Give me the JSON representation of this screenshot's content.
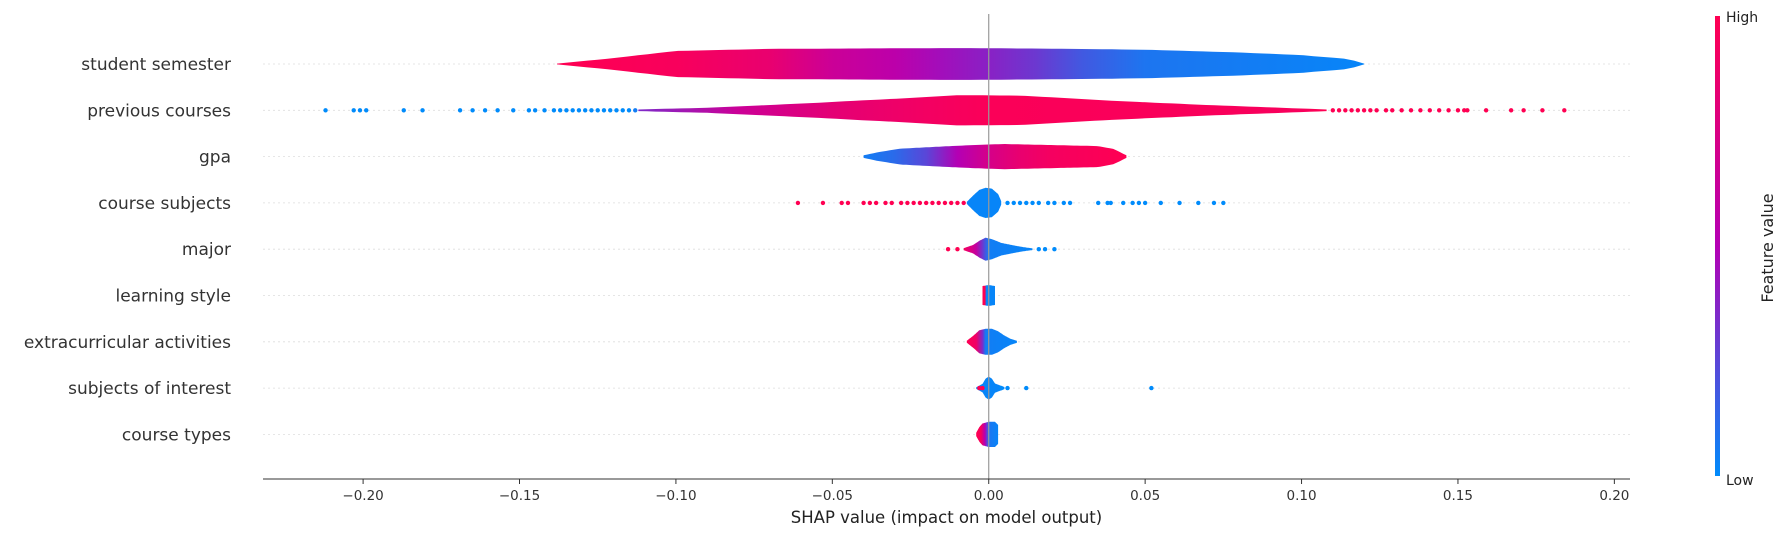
{
  "chart_data": {
    "type": "violin",
    "title": "",
    "xlabel": "SHAP value (impact on model output)",
    "xlim": [
      -0.232,
      0.205
    ],
    "xticks": [
      -0.2,
      -0.15,
      -0.1,
      -0.05,
      0.0,
      0.05,
      0.1,
      0.15,
      0.2
    ],
    "xtick_labels": [
      "−0.20",
      "−0.15",
      "−0.10",
      "−0.05",
      "0.00",
      "0.05",
      "0.10",
      "0.15",
      "0.20"
    ],
    "colorbar": {
      "label": "Feature value",
      "high_label": "High",
      "low_label": "Low",
      "low_color": "#008bfb",
      "high_color": "#ff0052"
    },
    "features": [
      {
        "name": "student semester",
        "range": [
          -0.138,
          0.12
        ],
        "width": [
          [
            -0.138,
            0.02
          ],
          [
            -0.12,
            0.28
          ],
          [
            -0.1,
            0.62
          ],
          [
            -0.07,
            0.72
          ],
          [
            -0.04,
            0.74
          ],
          [
            -0.01,
            0.76
          ],
          [
            0.02,
            0.73
          ],
          [
            0.05,
            0.68
          ],
          [
            0.08,
            0.55
          ],
          [
            0.1,
            0.42
          ],
          [
            0.115,
            0.24
          ],
          [
            0.12,
            0.02
          ]
        ],
        "color": [
          [
            -0.138,
            1.0
          ],
          [
            -0.1,
            0.95
          ],
          [
            -0.07,
            0.85
          ],
          [
            -0.05,
            0.65
          ],
          [
            -0.03,
            0.55
          ],
          [
            -0.015,
            0.45
          ],
          [
            0.0,
            0.38
          ],
          [
            0.015,
            0.3
          ],
          [
            0.03,
            0.18
          ],
          [
            0.05,
            0.08
          ],
          [
            0.12,
            0.02
          ]
        ]
      },
      {
        "name": "previous courses",
        "range": [
          -0.112,
          0.108
        ],
        "width": [
          [
            -0.112,
            0.04
          ],
          [
            -0.09,
            0.12
          ],
          [
            -0.06,
            0.32
          ],
          [
            -0.03,
            0.55
          ],
          [
            -0.01,
            0.72
          ],
          [
            0.01,
            0.7
          ],
          [
            0.04,
            0.45
          ],
          [
            0.07,
            0.25
          ],
          [
            0.09,
            0.14
          ],
          [
            0.108,
            0.04
          ]
        ],
        "color": [
          [
            -0.112,
            0.35
          ],
          [
            -0.08,
            0.65
          ],
          [
            -0.05,
            0.82
          ],
          [
            -0.02,
            0.92
          ],
          [
            0.0,
            0.97
          ],
          [
            0.1,
            0.95
          ],
          [
            0.108,
            1.0
          ]
        ],
        "dots": [
          [
            -0.212,
            0.0
          ],
          [
            -0.203,
            0.0
          ],
          [
            -0.201,
            0.0
          ],
          [
            -0.199,
            0.0
          ],
          [
            -0.187,
            0.0
          ],
          [
            -0.181,
            0.0
          ],
          [
            -0.169,
            0.0
          ],
          [
            -0.165,
            0.0
          ],
          [
            -0.161,
            0.0
          ],
          [
            -0.157,
            0.0
          ],
          [
            -0.152,
            0.0
          ],
          [
            -0.147,
            0.0
          ],
          [
            -0.145,
            0.0
          ],
          [
            -0.142,
            0.0
          ],
          [
            -0.139,
            0.0
          ],
          [
            -0.137,
            0.0
          ],
          [
            -0.135,
            0.0
          ],
          [
            -0.133,
            0.0
          ],
          [
            -0.131,
            0.0
          ],
          [
            -0.129,
            0.0
          ],
          [
            -0.127,
            0.0
          ],
          [
            -0.125,
            0.0
          ],
          [
            -0.123,
            0.0
          ],
          [
            -0.121,
            0.0
          ],
          [
            -0.119,
            0.0
          ],
          [
            -0.117,
            0.0
          ],
          [
            -0.115,
            0.0
          ],
          [
            -0.113,
            0.05
          ],
          [
            0.11,
            1.0
          ],
          [
            0.112,
            1.0
          ],
          [
            0.114,
            1.0
          ],
          [
            0.116,
            1.0
          ],
          [
            0.118,
            1.0
          ],
          [
            0.12,
            1.0
          ],
          [
            0.122,
            1.0
          ],
          [
            0.124,
            1.0
          ],
          [
            0.127,
            1.0
          ],
          [
            0.129,
            1.0
          ],
          [
            0.132,
            1.0
          ],
          [
            0.135,
            1.0
          ],
          [
            0.138,
            1.0
          ],
          [
            0.141,
            1.0
          ],
          [
            0.144,
            1.0
          ],
          [
            0.147,
            1.0
          ],
          [
            0.15,
            1.0
          ],
          [
            0.152,
            1.0
          ],
          [
            0.153,
            1.0
          ],
          [
            0.159,
            1.0
          ],
          [
            0.167,
            1.0
          ],
          [
            0.171,
            1.0
          ],
          [
            0.177,
            1.0
          ],
          [
            0.184,
            1.0
          ]
        ]
      },
      {
        "name": "gpa",
        "range": [
          -0.04,
          0.044
        ],
        "width": [
          [
            -0.04,
            0.06
          ],
          [
            -0.035,
            0.22
          ],
          [
            -0.028,
            0.38
          ],
          [
            -0.015,
            0.48
          ],
          [
            -0.005,
            0.55
          ],
          [
            0.005,
            0.6
          ],
          [
            0.02,
            0.55
          ],
          [
            0.035,
            0.5
          ],
          [
            0.04,
            0.36
          ],
          [
            0.044,
            0.06
          ]
        ],
        "color": [
          [
            -0.04,
            0.05
          ],
          [
            -0.03,
            0.12
          ],
          [
            -0.02,
            0.25
          ],
          [
            -0.01,
            0.5
          ],
          [
            0.0,
            0.72
          ],
          [
            0.01,
            0.85
          ],
          [
            0.02,
            0.93
          ],
          [
            0.044,
            1.0
          ]
        ]
      },
      {
        "name": "course subjects",
        "range": [
          -0.007,
          0.004
        ],
        "width": [
          [
            -0.007,
            0.05
          ],
          [
            -0.005,
            0.35
          ],
          [
            -0.003,
            0.62
          ],
          [
            -0.001,
            0.72
          ],
          [
            0.001,
            0.68
          ],
          [
            0.003,
            0.42
          ],
          [
            0.004,
            0.08
          ]
        ],
        "color": [
          [
            -0.007,
            0.02
          ],
          [
            0.004,
            0.02
          ]
        ],
        "dots": [
          [
            -0.061,
            1.0
          ],
          [
            -0.053,
            1.0
          ],
          [
            -0.047,
            1.0
          ],
          [
            -0.045,
            1.0
          ],
          [
            -0.04,
            1.0
          ],
          [
            -0.038,
            1.0
          ],
          [
            -0.036,
            1.0
          ],
          [
            -0.033,
            1.0
          ],
          [
            -0.031,
            1.0
          ],
          [
            -0.028,
            1.0
          ],
          [
            -0.026,
            1.0
          ],
          [
            -0.024,
            1.0
          ],
          [
            -0.022,
            1.0
          ],
          [
            -0.02,
            1.0
          ],
          [
            -0.018,
            1.0
          ],
          [
            -0.016,
            1.0
          ],
          [
            -0.014,
            1.0
          ],
          [
            -0.012,
            1.0
          ],
          [
            -0.01,
            1.0
          ],
          [
            -0.008,
            1.0
          ],
          [
            0.006,
            0.0
          ],
          [
            0.008,
            0.0
          ],
          [
            0.01,
            0.0
          ],
          [
            0.012,
            0.0
          ],
          [
            0.014,
            0.0
          ],
          [
            0.016,
            0.0
          ],
          [
            0.019,
            0.0
          ],
          [
            0.021,
            0.0
          ],
          [
            0.024,
            0.0
          ],
          [
            0.026,
            0.0
          ],
          [
            0.035,
            0.0
          ],
          [
            0.038,
            0.0
          ],
          [
            0.039,
            0.0
          ],
          [
            0.043,
            0.0
          ],
          [
            0.046,
            0.0
          ],
          [
            0.048,
            0.0
          ],
          [
            0.05,
            0.0
          ],
          [
            0.055,
            0.0
          ],
          [
            0.061,
            0.0
          ],
          [
            0.067,
            0.0
          ],
          [
            0.072,
            0.0
          ],
          [
            0.075,
            0.0
          ]
        ]
      },
      {
        "name": "major",
        "range": [
          -0.008,
          0.014
        ],
        "width": [
          [
            -0.008,
            0.05
          ],
          [
            -0.005,
            0.2
          ],
          [
            -0.003,
            0.4
          ],
          [
            -0.001,
            0.55
          ],
          [
            0.001,
            0.48
          ],
          [
            0.004,
            0.3
          ],
          [
            0.008,
            0.18
          ],
          [
            0.011,
            0.1
          ],
          [
            0.014,
            0.04
          ]
        ],
        "color": [
          [
            -0.008,
            0.95
          ],
          [
            -0.004,
            0.6
          ],
          [
            -0.002,
            0.3
          ],
          [
            0.0,
            0.05
          ],
          [
            0.014,
            0.02
          ]
        ],
        "dots": [
          [
            -0.013,
            1.0
          ],
          [
            -0.01,
            1.0
          ],
          [
            0.016,
            0.0
          ],
          [
            0.018,
            0.0
          ],
          [
            0.021,
            0.0
          ]
        ]
      },
      {
        "name": "learning style",
        "range": [
          -0.002,
          0.002
        ],
        "width": [
          [
            -0.002,
            0.45
          ],
          [
            0.0,
            0.5
          ],
          [
            0.002,
            0.45
          ]
        ],
        "color": [
          [
            -0.002,
            1.0
          ],
          [
            -0.0012,
            1.0
          ],
          [
            -0.0008,
            0.02
          ],
          [
            0.002,
            0.02
          ]
        ]
      },
      {
        "name": "extracurricular activities",
        "range": [
          -0.007,
          0.009
        ],
        "width": [
          [
            -0.007,
            0.05
          ],
          [
            -0.005,
            0.28
          ],
          [
            -0.003,
            0.55
          ],
          [
            -0.001,
            0.62
          ],
          [
            0.001,
            0.62
          ],
          [
            0.003,
            0.5
          ],
          [
            0.005,
            0.3
          ],
          [
            0.007,
            0.14
          ],
          [
            0.009,
            0.05
          ]
        ],
        "color": [
          [
            -0.007,
            1.0
          ],
          [
            -0.004,
            0.9
          ],
          [
            -0.002,
            0.35
          ],
          [
            -0.001,
            0.05
          ],
          [
            0.009,
            0.02
          ]
        ]
      },
      {
        "name": "subjects of interest",
        "range": [
          -0.004,
          0.005
        ],
        "width": [
          [
            -0.004,
            0.04
          ],
          [
            -0.002,
            0.2
          ],
          [
            -0.001,
            0.45
          ],
          [
            0.0,
            0.55
          ],
          [
            0.001,
            0.45
          ],
          [
            0.002,
            0.22
          ],
          [
            0.005,
            0.05
          ]
        ],
        "color": [
          [
            -0.004,
            0.02
          ],
          [
            0.005,
            0.02
          ]
        ],
        "dots": [
          [
            -0.003,
            1.0
          ],
          [
            -0.002,
            1.0
          ],
          [
            0.004,
            0.0
          ],
          [
            0.006,
            0.0
          ],
          [
            0.012,
            0.0
          ],
          [
            0.052,
            0.0
          ]
        ]
      },
      {
        "name": "course types",
        "range": [
          -0.004,
          0.003
        ],
        "width": [
          [
            -0.004,
            0.08
          ],
          [
            -0.003,
            0.35
          ],
          [
            -0.002,
            0.52
          ],
          [
            0.0,
            0.6
          ],
          [
            0.002,
            0.6
          ],
          [
            0.003,
            0.45
          ]
        ],
        "color": [
          [
            -0.004,
            1.0
          ],
          [
            -0.0025,
            0.95
          ],
          [
            -0.0012,
            0.5
          ],
          [
            0.0,
            0.08
          ],
          [
            0.003,
            0.02
          ]
        ]
      }
    ]
  }
}
